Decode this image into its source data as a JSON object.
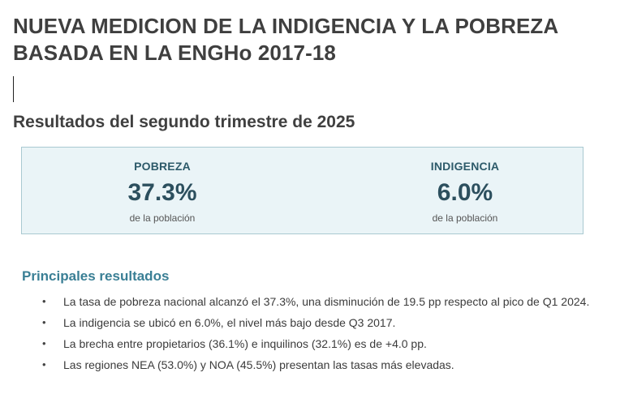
{
  "header": {
    "title_line1": "NUEVA MEDICION DE LA INDIGENCIA Y LA POBREZA",
    "title_line2": "BASADA EN LA ENGHo 2017-18",
    "subtitle": "Resultados del segundo trimestre de 2025"
  },
  "kpis": [
    {
      "label": "POBREZA",
      "value": "37.3%",
      "caption": "de la población"
    },
    {
      "label": "INDIGENCIA",
      "value": "6.0%",
      "caption": "de la población"
    }
  ],
  "results": {
    "title": "Principales resultados",
    "bullet_glyph": "•",
    "items": [
      "La tasa de pobreza nacional alcanzó el 37.3%, una disminución de 19.5 pp respecto al pico de Q1 2024.",
      "La indigencia se ubicó en 6.0%, el nivel más bajo desde Q3 2017.",
      "La brecha entre propietarios (36.1%) e inquilinos (32.1%) es de +4.0 pp.",
      "Las regiones NEA (53.0%) y NOA (45.5%) presentan las tasas más elevadas."
    ]
  },
  "colors": {
    "kpi_background": "#eaf4f7",
    "kpi_border": "#a9c9d1",
    "accent": "#3a7f95"
  }
}
